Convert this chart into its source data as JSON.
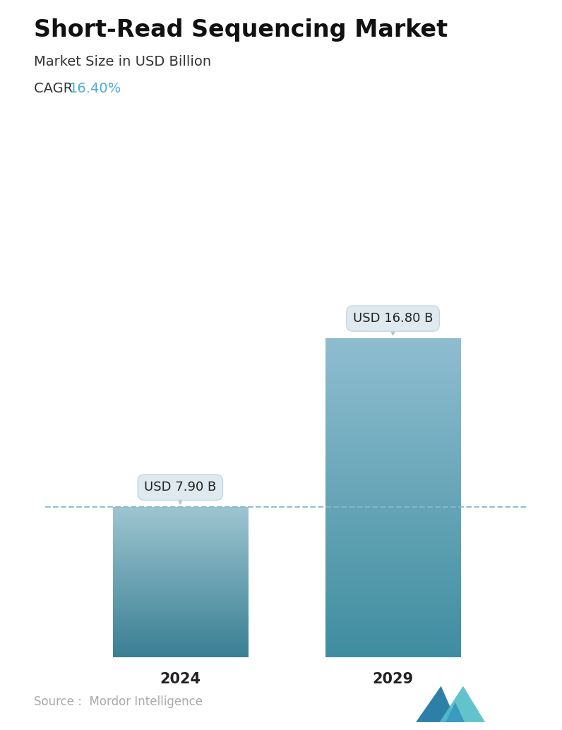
{
  "title": "Short-Read Sequencing Market",
  "subtitle": "Market Size in USD Billion",
  "cagr_label": "CAGR",
  "cagr_value": "16.40%",
  "cagr_color": "#4AABDB",
  "categories": [
    "2024",
    "2029"
  ],
  "values": [
    7.9,
    16.8
  ],
  "labels": [
    "USD 7.90 B",
    "USD 16.80 B"
  ],
  "bar1_color_top": "#9DC5D0",
  "bar1_color_bottom": "#3A7F94",
  "bar2_color_top": "#8FBDD0",
  "bar2_color_bottom": "#3F8EA0",
  "dashed_line_color": "#88B8C8",
  "dashed_line_value": 7.9,
  "source_text": "Source :  Mordor Intelligence",
  "source_color": "#aaaaaa",
  "background_color": "#FFFFFF",
  "title_fontsize": 24,
  "subtitle_fontsize": 14,
  "cagr_fontsize": 14,
  "label_fontsize": 13,
  "tick_fontsize": 15,
  "source_fontsize": 12,
  "ylim": [
    0,
    20
  ],
  "bar_width": 0.28
}
